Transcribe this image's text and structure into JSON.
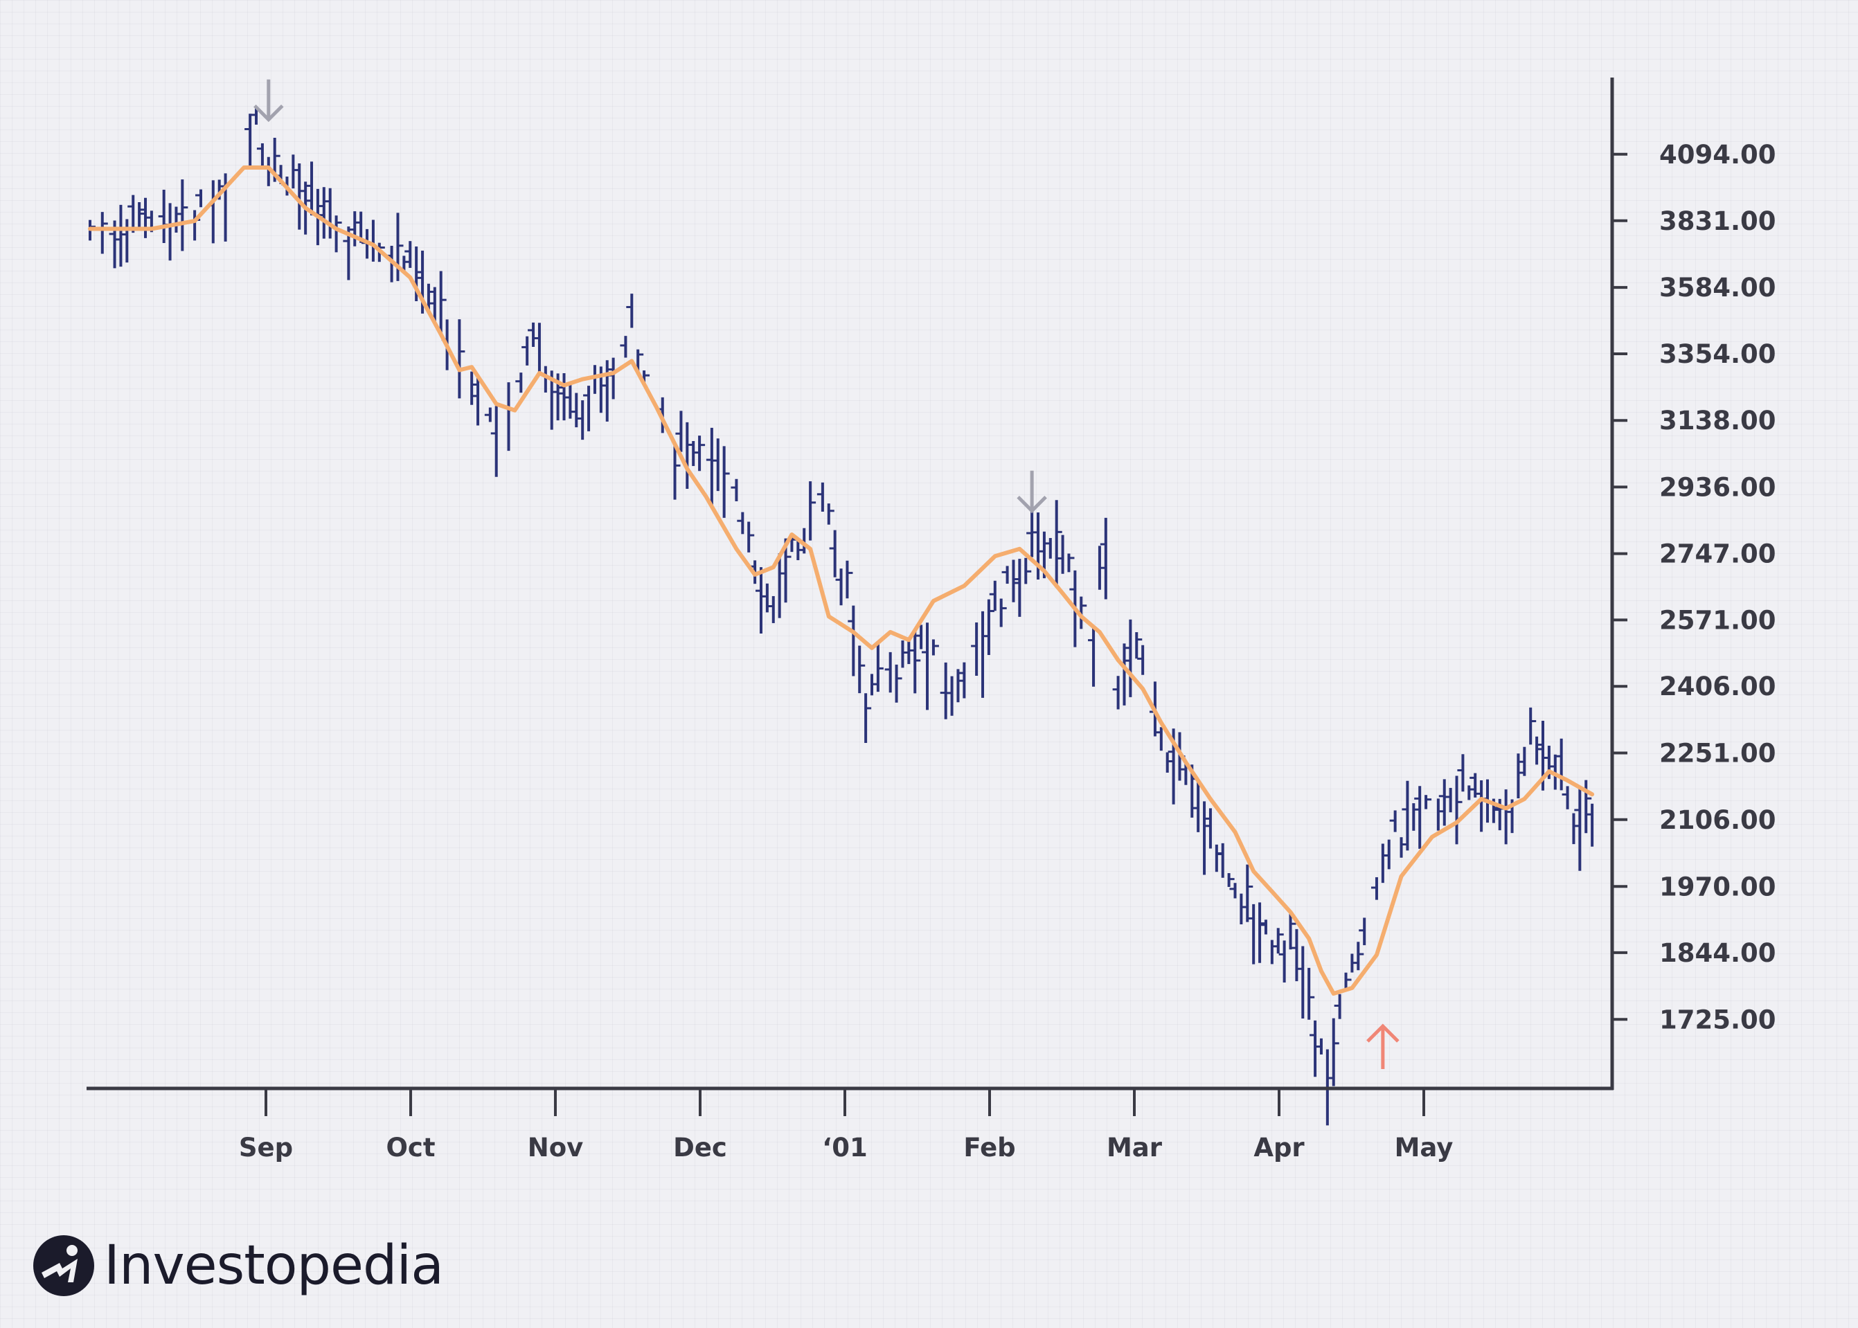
{
  "chart_data": {
    "type": "ohlc",
    "x_tick_labels": [
      "Sep",
      "Oct",
      "Nov",
      "Dec",
      "‘01",
      "Feb",
      "Mar",
      "Apr",
      "May"
    ],
    "y_tick_labels": [
      "4094.00",
      "3831.00",
      "3584.00",
      "3354.00",
      "3138.00",
      "2936.00",
      "2747.00",
      "2571.00",
      "2406.00",
      "2251.00",
      "2106.00",
      "1970.00",
      "1844.00",
      "1725.00"
    ],
    "y_ticks": [
      4094,
      3831,
      3584,
      3354,
      3138,
      2936,
      2747,
      2571,
      2406,
      2251,
      2106,
      1970,
      1844,
      1725
    ],
    "y_scale": "log",
    "ylim": [
      1610,
      4420
    ],
    "grid": true,
    "colors": {
      "bars": "#2b3378",
      "moving_average": "#f5ad6e",
      "sell_arrow": "#a2a2ae",
      "buy_arrow": "#f08676",
      "axis": "#3a3a44"
    },
    "price_path": [
      [
        0,
        3800
      ],
      [
        5,
        3820
      ],
      [
        15,
        3825
      ],
      [
        22,
        3925
      ],
      [
        26,
        4150
      ],
      [
        27,
        4260
      ],
      [
        29,
        4080
      ],
      [
        35,
        3920
      ],
      [
        40,
        3820
      ],
      [
        45,
        3760
      ],
      [
        50,
        3720
      ],
      [
        55,
        3560
      ],
      [
        60,
        3380
      ],
      [
        65,
        3160
      ],
      [
        67,
        3050
      ],
      [
        70,
        3250
      ],
      [
        72,
        3480
      ],
      [
        75,
        3250
      ],
      [
        80,
        3200
      ],
      [
        85,
        3320
      ],
      [
        88,
        3460
      ],
      [
        90,
        3340
      ],
      [
        95,
        3050
      ],
      [
        100,
        3080
      ],
      [
        103,
        2950
      ],
      [
        107,
        2820
      ],
      [
        110,
        2620
      ],
      [
        113,
        2700
      ],
      [
        117,
        2860
      ],
      [
        119,
        2950
      ],
      [
        121,
        2760
      ],
      [
        124,
        2600
      ],
      [
        126,
        2380
      ],
      [
        130,
        2440
      ],
      [
        135,
        2520
      ],
      [
        140,
        2380
      ],
      [
        143,
        2500
      ],
      [
        147,
        2600
      ],
      [
        150,
        2680
      ],
      [
        153,
        2760
      ],
      [
        157,
        2800
      ],
      [
        160,
        2680
      ],
      [
        163,
        2560
      ],
      [
        165,
        2780
      ],
      [
        167,
        2420
      ],
      [
        170,
        2500
      ],
      [
        173,
        2320
      ],
      [
        176,
        2230
      ],
      [
        180,
        2160
      ],
      [
        184,
        2020
      ],
      [
        188,
        1940
      ],
      [
        192,
        1880
      ],
      [
        195,
        1870
      ],
      [
        197,
        1820
      ],
      [
        199,
        1690
      ],
      [
        201,
        1640
      ],
      [
        203,
        1720
      ],
      [
        205,
        1830
      ],
      [
        207,
        1900
      ],
      [
        210,
        2050
      ],
      [
        213,
        2080
      ],
      [
        218,
        2140
      ],
      [
        222,
        2180
      ],
      [
        226,
        2170
      ],
      [
        229,
        2110
      ],
      [
        232,
        2170
      ],
      [
        234,
        2310
      ],
      [
        237,
        2270
      ],
      [
        239,
        2210
      ],
      [
        241,
        2110
      ],
      [
        244,
        2140
      ]
    ],
    "moving_average": [
      [
        0,
        3800
      ],
      [
        10,
        3800
      ],
      [
        17,
        3830
      ],
      [
        25,
        4040
      ],
      [
        29,
        4040
      ],
      [
        35,
        3880
      ],
      [
        40,
        3800
      ],
      [
        46,
        3740
      ],
      [
        52,
        3620
      ],
      [
        57,
        3420
      ],
      [
        60,
        3300
      ],
      [
        62,
        3310
      ],
      [
        66,
        3190
      ],
      [
        69,
        3170
      ],
      [
        73,
        3290
      ],
      [
        77,
        3250
      ],
      [
        80,
        3270
      ],
      [
        85,
        3290
      ],
      [
        88,
        3330
      ],
      [
        92,
        3180
      ],
      [
        97,
        2990
      ],
      [
        100,
        2910
      ],
      [
        105,
        2760
      ],
      [
        108,
        2690
      ],
      [
        111,
        2710
      ],
      [
        114,
        2800
      ],
      [
        117,
        2760
      ],
      [
        120,
        2580
      ],
      [
        124,
        2540
      ],
      [
        127,
        2500
      ],
      [
        130,
        2540
      ],
      [
        133,
        2520
      ],
      [
        137,
        2620
      ],
      [
        142,
        2660
      ],
      [
        147,
        2740
      ],
      [
        151,
        2760
      ],
      [
        155,
        2700
      ],
      [
        158,
        2640
      ],
      [
        161,
        2580
      ],
      [
        164,
        2540
      ],
      [
        167,
        2470
      ],
      [
        171,
        2400
      ],
      [
        174,
        2320
      ],
      [
        178,
        2230
      ],
      [
        182,
        2150
      ],
      [
        186,
        2080
      ],
      [
        189,
        2000
      ],
      [
        192,
        1960
      ],
      [
        195,
        1920
      ],
      [
        198,
        1870
      ],
      [
        200,
        1810
      ],
      [
        202,
        1770
      ],
      [
        205,
        1780
      ],
      [
        209,
        1840
      ],
      [
        213,
        1990
      ],
      [
        218,
        2070
      ],
      [
        222,
        2100
      ],
      [
        226,
        2150
      ],
      [
        230,
        2130
      ],
      [
        233,
        2150
      ],
      [
        237,
        2210
      ],
      [
        240,
        2190
      ],
      [
        244,
        2160
      ]
    ],
    "sell_signal_arrows": [
      29,
      153
    ],
    "buy_signal_arrows": [
      210
    ]
  },
  "brand": {
    "name": "Investopedia"
  }
}
